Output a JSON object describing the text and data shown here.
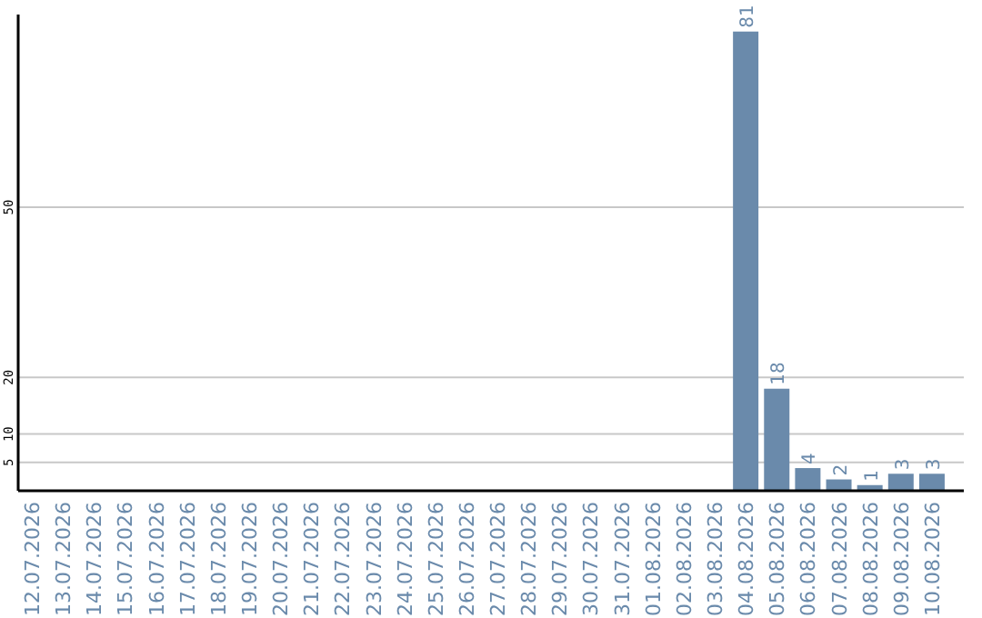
{
  "chart_data": {
    "type": "bar",
    "categories": [
      "12.07.2026",
      "13.07.2026",
      "14.07.2026",
      "15.07.2026",
      "16.07.2026",
      "17.07.2026",
      "18.07.2026",
      "19.07.2026",
      "20.07.2026",
      "21.07.2026",
      "22.07.2026",
      "23.07.2026",
      "24.07.2026",
      "25.07.2026",
      "26.07.2026",
      "27.07.2026",
      "28.07.2026",
      "29.07.2026",
      "30.07.2026",
      "31.07.2026",
      "01.08.2026",
      "02.08.2026",
      "03.08.2026",
      "04.08.2026",
      "05.08.2026",
      "06.08.2026",
      "07.08.2026",
      "08.08.2026",
      "09.08.2026",
      "10.08.2026"
    ],
    "values": [
      0,
      0,
      0,
      0,
      0,
      0,
      0,
      0,
      0,
      0,
      0,
      0,
      0,
      0,
      0,
      0,
      0,
      0,
      0,
      0,
      0,
      0,
      0,
      81,
      18,
      4,
      2,
      1,
      3,
      3
    ],
    "value_labels": [
      null,
      null,
      null,
      null,
      null,
      null,
      null,
      null,
      null,
      null,
      null,
      null,
      null,
      null,
      null,
      null,
      null,
      null,
      null,
      null,
      null,
      null,
      null,
      "81",
      "18",
      "4",
      "2",
      "1",
      "3",
      "3"
    ],
    "color": "#6a8aab",
    "ylim": [
      0,
      84
    ],
    "yticks": [
      5,
      10,
      20,
      50
    ],
    "grid": "y"
  }
}
